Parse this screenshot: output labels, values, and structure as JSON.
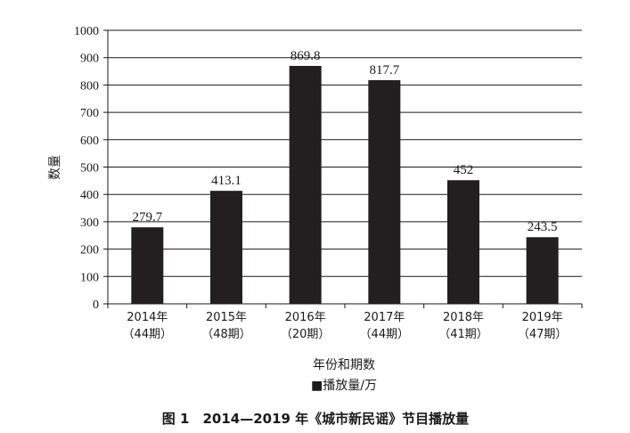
{
  "chart_data": {
    "type": "bar",
    "categories": [
      "2014年",
      "2015年",
      "2016年",
      "2017年",
      "2018年",
      "2019年"
    ],
    "category_sublabels": [
      "（44期）",
      "（48期）",
      "（20期）",
      "（44期）",
      "（41期）",
      "（47期）"
    ],
    "series": [
      {
        "name": "播放量/万",
        "values": [
          279.7,
          413.1,
          869.8,
          817.7,
          452,
          243.5
        ]
      }
    ],
    "value_labels": [
      "279.7",
      "413.1",
      "869.8",
      "817.7",
      "452",
      "243.5"
    ],
    "y_ticks": [
      0,
      100,
      200,
      300,
      400,
      500,
      600,
      700,
      800,
      900,
      1000
    ],
    "ylim": [
      0,
      1000
    ],
    "xlabel": "年份和期数",
    "ylabel": "数量",
    "grid": true,
    "legend": {
      "placement": "bottom-center",
      "label": "■播放量/万"
    },
    "caption": "图 1　2014—2019 年《城市新民谣》节目播放量",
    "bar_color": "#231f20",
    "grid_color": "#1a1a1a"
  }
}
